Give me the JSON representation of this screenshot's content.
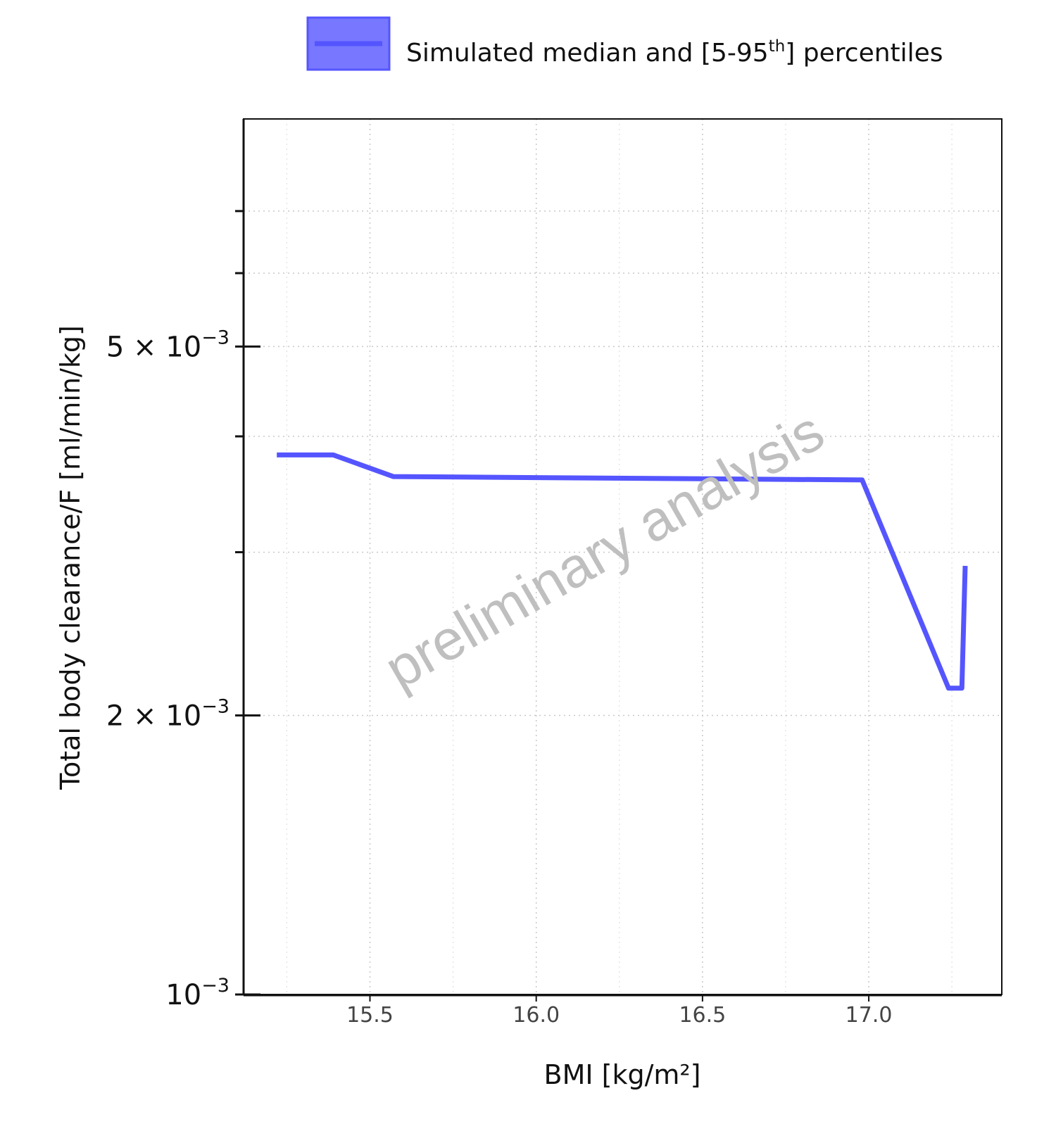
{
  "legend": {
    "label_main": "Simulated median and [5-95",
    "label_sup": "th",
    "label_end": "] percentiles",
    "swatch_color": "#5555ff"
  },
  "watermark": "preliminary analysis",
  "chart_data": {
    "type": "line",
    "xlabel": "BMI [kg/m²]",
    "ylabel": "Total body clearance/F [ml/min/kg]",
    "xlim": [
      15.12,
      17.4
    ],
    "ylim": [
      0.001,
      0.0088
    ],
    "yscale": "log",
    "grid": true,
    "legend_position": "top",
    "x_ticks": [
      {
        "value": 15.5,
        "label": "15.5"
      },
      {
        "value": 16.0,
        "label": "16.0"
      },
      {
        "value": 16.5,
        "label": "16.5"
      },
      {
        "value": 17.0,
        "label": "17.0"
      }
    ],
    "y_ticks_labeled": [
      {
        "value": 0.005,
        "mantissa": "5 × 10",
        "exponent": "−3"
      },
      {
        "value": 0.002,
        "mantissa": "2 × 10",
        "exponent": "−3"
      },
      {
        "value": 0.001,
        "mantissa": "10",
        "exponent": "−3"
      }
    ],
    "y_ticks_minor": [
      0.003,
      0.004,
      0.006,
      0.007
    ],
    "series": [
      {
        "name": "Simulated median and [5-95th] percentiles",
        "color": "#5555ff",
        "x": [
          15.22,
          15.39,
          15.57,
          16.98,
          17.24,
          17.28,
          17.29
        ],
        "y": [
          0.00382,
          0.00382,
          0.00362,
          0.00359,
          0.00214,
          0.00214,
          0.0029
        ]
      }
    ]
  }
}
